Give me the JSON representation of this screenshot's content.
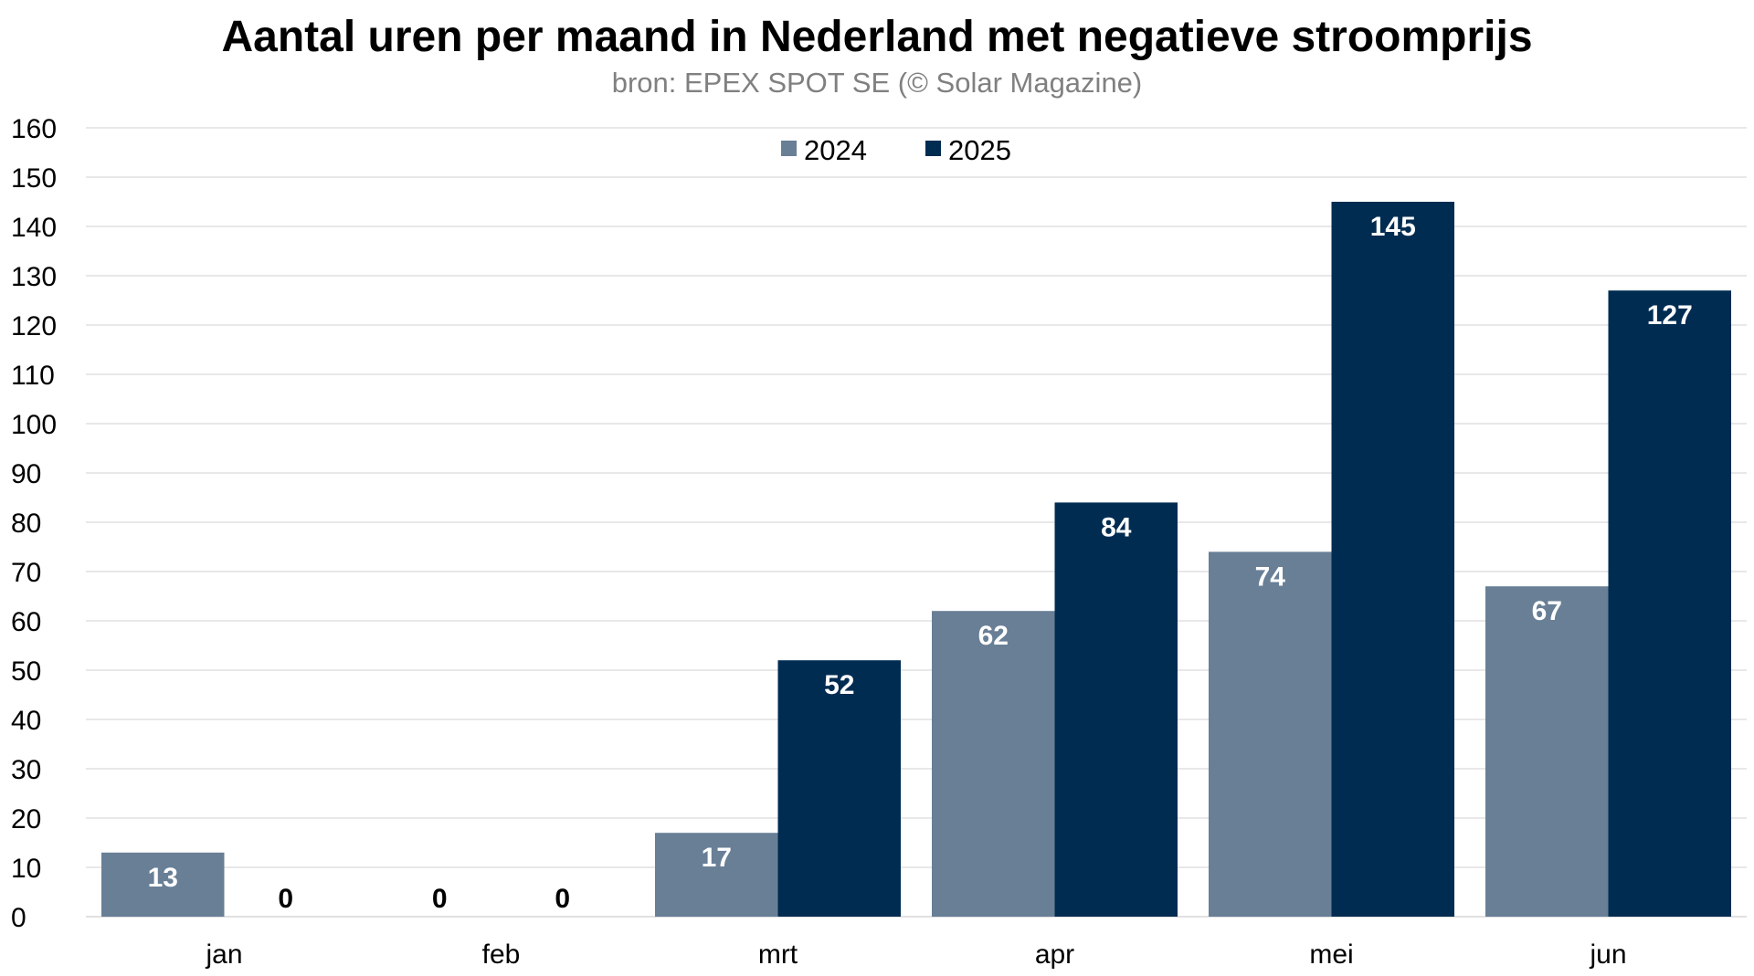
{
  "chart_data": {
    "type": "bar",
    "title": "Aantal uren per maand in Nederland met negatieve stroomprijs",
    "subtitle": "bron: EPEX SPOT SE (© Solar Magazine)",
    "categories": [
      "jan",
      "feb",
      "mrt",
      "apr",
      "mei",
      "jun"
    ],
    "series": [
      {
        "name": "2024",
        "values": [
          13,
          0,
          17,
          62,
          74,
          67
        ],
        "color": "#687f96"
      },
      {
        "name": "2025",
        "values": [
          0,
          0,
          52,
          84,
          145,
          127
        ],
        "color": "#002c52"
      }
    ],
    "data_labels": {
      "2024": [
        "13",
        "0",
        "17",
        "62",
        "74",
        "67"
      ],
      "2025": [
        "0",
        "0",
        "52",
        "84",
        "145",
        "127"
      ]
    },
    "yticks": [
      "0",
      "10",
      "20",
      "30",
      "40",
      "50",
      "60",
      "70",
      "80",
      "90",
      "100",
      "110",
      "120",
      "130",
      "140",
      "150",
      "160"
    ],
    "ylim": [
      0,
      160
    ],
    "xlabel": "",
    "ylabel": "",
    "grid": true,
    "legend_position": "top-center",
    "colors": {
      "gridline": "#d9d9d9",
      "axis": "#d9d9d9",
      "label_inside": "#ffffff",
      "label_outside": "#000000"
    }
  }
}
